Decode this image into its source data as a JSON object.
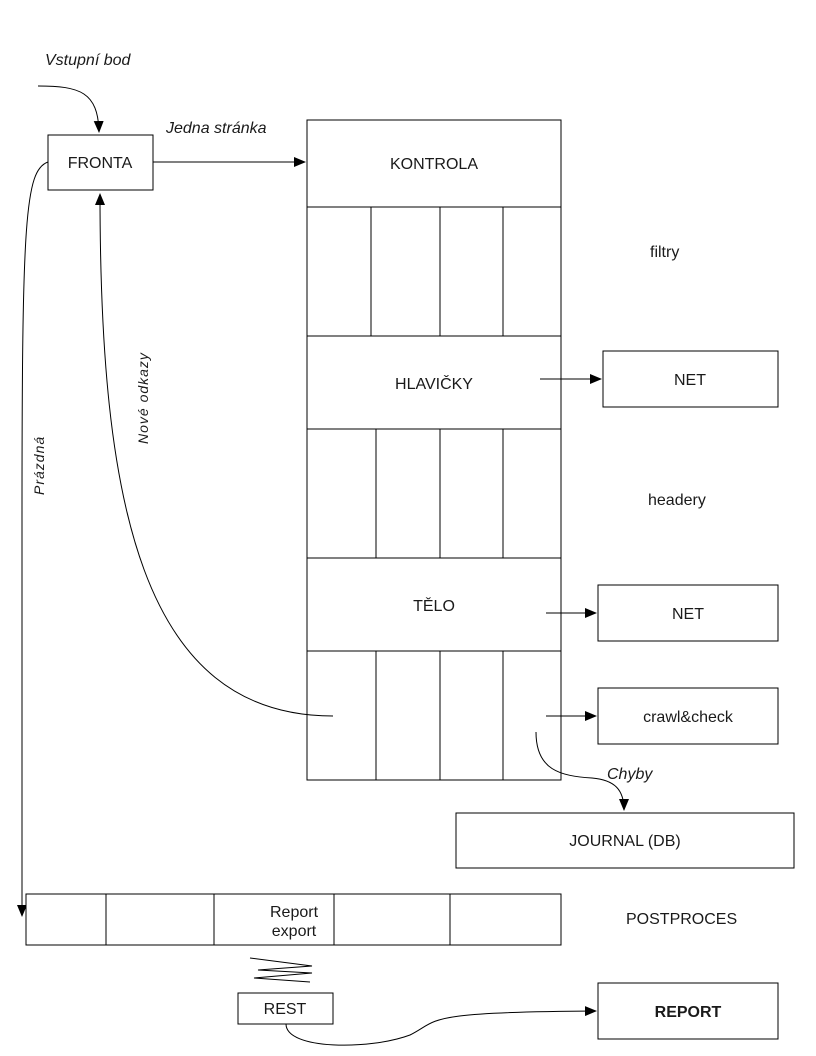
{
  "labels": {
    "entry_point": "Vstupní bod",
    "one_page": "Jedna stránka",
    "empty": "Prázdná",
    "new_links": "Nové odkazy",
    "errors": "Chyby",
    "filters": "filtry",
    "headers": "headery",
    "postprocess": "POSTPROCES"
  },
  "boxes": {
    "queue": "FRONTA",
    "check": "KONTROLA",
    "headers_stage": "HLAVIČKY",
    "body_stage": "TĚLO",
    "net_1": "NET",
    "net_2": "NET",
    "crawl_check": "crawl&check",
    "journal": "JOURNAL (DB)",
    "report_export_line1": "Report",
    "report_export_line2": "export",
    "rest": "REST",
    "report": "REPORT"
  }
}
